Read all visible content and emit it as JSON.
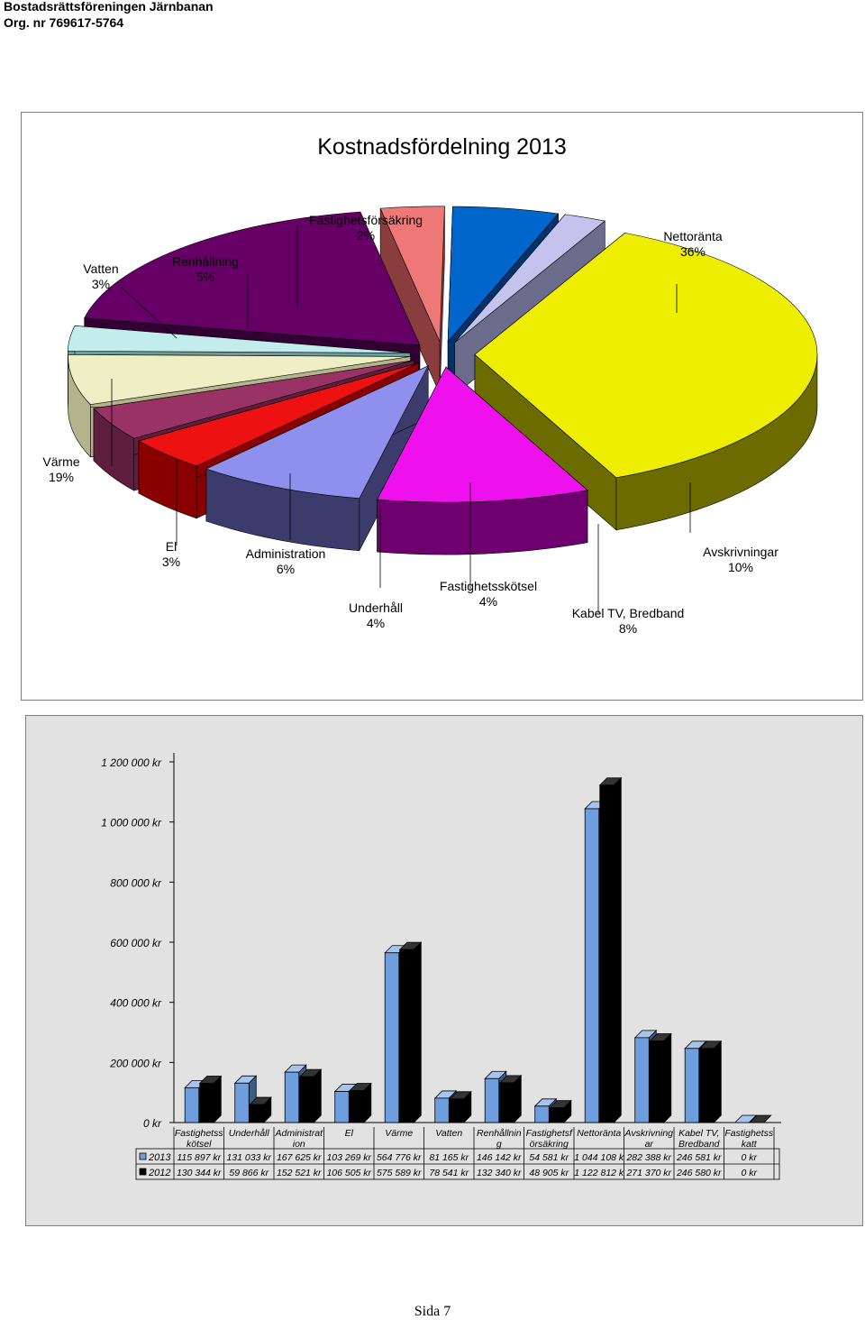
{
  "header": {
    "line1": "Bostadsrättsföreningen Järnbanan",
    "line2": "Org. nr 769617-5764"
  },
  "footer": {
    "page": "Sida 7"
  },
  "chart_data": [
    {
      "type": "pie",
      "title": "Kostnadsfördelning 2013",
      "slices": [
        {
          "label": "Nettoränta",
          "pct": "36%",
          "value": 36,
          "color": "#eeee00",
          "side": "#6b6b00"
        },
        {
          "label": "Avskrivningar",
          "pct": "10%",
          "value": 10,
          "color": "#ee11ee",
          "side": "#6f006f"
        },
        {
          "label": "Kabel TV, Bredband",
          "pct": "8%",
          "value": 8,
          "color": "#8f8fee",
          "side": "#3c3c6c"
        },
        {
          "label": "Fastighetsskötsel",
          "pct": "4%",
          "value": 4,
          "color": "#ee1111",
          "side": "#8a0000"
        },
        {
          "label": "Underhåll",
          "pct": "4%",
          "value": 4,
          "color": "#993366",
          "side": "#5e1f3e"
        },
        {
          "label": "Administration",
          "pct": "6%",
          "value": 6,
          "color": "#efefc6",
          "side": "#b4b48c"
        },
        {
          "label": "El",
          "pct": "3%",
          "value": 3,
          "color": "#c3ecec",
          "side": "#6f9a9a"
        },
        {
          "label": "Värme",
          "pct": "19%",
          "value": 19,
          "color": "#660066",
          "side": "#330033"
        },
        {
          "label": "Vatten",
          "pct": "3%",
          "value": 3,
          "color": "#ee7777",
          "side": "#8a3d3d"
        },
        {
          "label": "Renhållning",
          "pct": "5%",
          "value": 5,
          "color": "#0066cc",
          "side": "#00336b"
        },
        {
          "label": "Fastighetsförsäkring",
          "pct": "2%",
          "value": 2,
          "color": "#c3c3ee",
          "side": "#6b6b8c"
        }
      ]
    },
    {
      "type": "bar",
      "categories": [
        "Fastighetss\nkötsel",
        "Underhåll",
        "Administrat\nion",
        "El",
        "Värme",
        "Vatten",
        "Renhållnin\ng",
        "Fastighetsf\nörsäkring",
        "Nettoränta",
        "Avskrivning\nar",
        "Kabel TV,\nBredband",
        "Fastighetss\nkatt"
      ],
      "ylim": [
        0,
        1200000
      ],
      "yticks": [
        "0 kr",
        "200 000 kr",
        "400 000 kr",
        "600 000 kr",
        "800 000 kr",
        "1 000 000 kr",
        "1 200 000 kr"
      ],
      "series": [
        {
          "name": "2013",
          "color": "#6f9ede",
          "values": [
            115897,
            131033,
            167625,
            103269,
            564776,
            81165,
            146142,
            54581,
            1044108,
            282388,
            246581,
            0
          ],
          "labels": [
            "115 897 kr",
            "131 033 kr",
            "167 625 kr",
            "103 269 kr",
            "564 776 kr",
            "81 165 kr",
            "146 142 kr",
            "54 581 kr",
            "1 044 108 k",
            "282 388 kr",
            "246 581 kr",
            "0 kr"
          ]
        },
        {
          "name": "2012",
          "color": "#000000",
          "values": [
            130344,
            59866,
            152521,
            106505,
            575589,
            78541,
            132340,
            48905,
            1122812,
            271370,
            246580,
            0
          ],
          "labels": [
            "130 344 kr",
            "59 866 kr",
            "152 521 kr",
            "106 505 kr",
            "575 589 kr",
            "78 541 kr",
            "132 340 kr",
            "48 905 kr",
            "1 122 812 k",
            "271 370 kr",
            "246 580 kr",
            "0 kr"
          ]
        }
      ],
      "grid": false,
      "legend": "table"
    }
  ]
}
